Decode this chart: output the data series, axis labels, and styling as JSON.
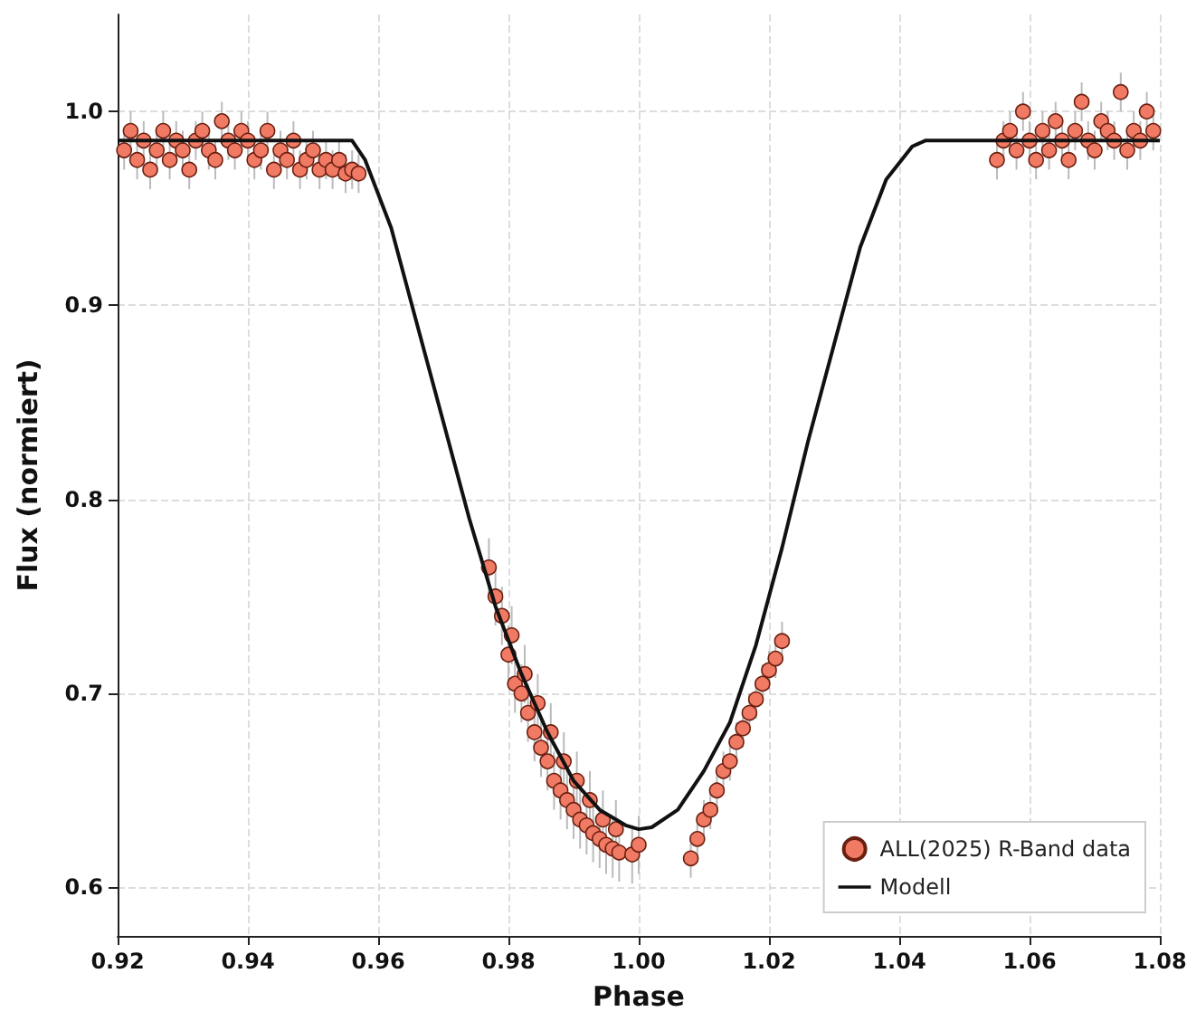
{
  "chart_data": {
    "type": "scatter",
    "xlabel": "Phase",
    "ylabel": "Flux (normiert)",
    "xlim": [
      0.92,
      1.08
    ],
    "xticks": [
      0.92,
      0.94,
      0.96,
      0.98,
      {
        "value": 1,
        "label": "1.00"
      },
      1.02,
      1.04,
      1.06,
      1.08
    ],
    "ylim": [
      0.575,
      1.05
    ],
    "yticks": [
      0.6,
      0.7,
      0.8,
      0.9,
      {
        "value": 1,
        "label": "1.0"
      }
    ],
    "grid": true,
    "legend": "bottom right",
    "series": [
      {
        "name": "ALL(2025) R-Band data",
        "type": "scatter",
        "marker": "circle",
        "color": "#f07a64",
        "x": [
          0.921,
          0.922,
          0.923,
          0.924,
          0.925,
          0.926,
          0.927,
          0.928,
          0.929,
          0.93,
          0.931,
          0.932,
          0.933,
          0.934,
          0.935,
          0.936,
          0.937,
          0.938,
          0.939,
          0.94,
          0.941,
          0.942,
          0.943,
          0.944,
          0.945,
          0.946,
          0.947,
          0.948,
          0.949,
          0.95,
          0.951,
          0.952,
          0.953,
          0.954,
          0.955,
          0.956,
          0.957,
          0.977,
          0.978,
          0.979,
          0.98,
          0.981,
          0.982,
          0.983,
          0.984,
          0.985,
          0.986,
          0.987,
          0.988,
          0.989,
          0.99,
          0.991,
          0.992,
          0.993,
          0.994,
          0.995,
          0.996,
          0.997,
          0.999,
          1.0,
          0.9805,
          0.9825,
          0.9845,
          0.9865,
          0.9885,
          0.9905,
          0.9925,
          0.9945,
          0.9965,
          1.008,
          1.009,
          1.01,
          1.011,
          1.012,
          1.013,
          1.014,
          1.015,
          1.016,
          1.017,
          1.018,
          1.019,
          1.02,
          1.021,
          1.022,
          1.055,
          1.056,
          1.057,
          1.058,
          1.059,
          1.06,
          1.061,
          1.062,
          1.063,
          1.064,
          1.065,
          1.066,
          1.067,
          1.068,
          1.069,
          1.07,
          1.071,
          1.072,
          1.073,
          1.074,
          1.075,
          1.076,
          1.077,
          1.078,
          1.079
        ],
        "values": [
          0.98,
          0.99,
          0.975,
          0.985,
          0.97,
          0.98,
          0.99,
          0.975,
          0.985,
          0.98,
          0.97,
          0.985,
          0.99,
          0.98,
          0.975,
          0.995,
          0.985,
          0.98,
          0.99,
          0.985,
          0.975,
          0.98,
          0.99,
          0.97,
          0.98,
          0.975,
          0.985,
          0.97,
          0.975,
          0.98,
          0.97,
          0.975,
          0.97,
          0.975,
          0.968,
          0.97,
          0.968,
          0.765,
          0.75,
          0.74,
          0.72,
          0.705,
          0.7,
          0.69,
          0.68,
          0.672,
          0.665,
          0.655,
          0.65,
          0.645,
          0.64,
          0.635,
          0.632,
          0.628,
          0.625,
          0.622,
          0.62,
          0.618,
          0.617,
          0.622,
          0.73,
          0.71,
          0.695,
          0.68,
          0.665,
          0.655,
          0.645,
          0.635,
          0.63,
          0.615,
          0.625,
          0.635,
          0.64,
          0.65,
          0.66,
          0.665,
          0.675,
          0.682,
          0.69,
          0.697,
          0.705,
          0.712,
          0.718,
          0.727,
          0.975,
          0.985,
          0.99,
          0.98,
          1.0,
          0.985,
          0.975,
          0.99,
          0.98,
          0.995,
          0.985,
          0.975,
          0.99,
          1.005,
          0.985,
          0.98,
          0.995,
          0.99,
          0.985,
          1.01,
          0.98,
          0.99,
          0.985,
          1.0,
          0.99
        ],
        "errors": [
          0.01,
          0.01,
          0.01,
          0.01,
          0.01,
          0.01,
          0.01,
          0.01,
          0.01,
          0.01,
          0.01,
          0.01,
          0.01,
          0.01,
          0.01,
          0.01,
          0.01,
          0.01,
          0.01,
          0.01,
          0.01,
          0.01,
          0.01,
          0.01,
          0.01,
          0.01,
          0.01,
          0.01,
          0.01,
          0.01,
          0.01,
          0.01,
          0.01,
          0.01,
          0.01,
          0.01,
          0.01,
          0.015,
          0.015,
          0.015,
          0.015,
          0.015,
          0.015,
          0.015,
          0.015,
          0.015,
          0.015,
          0.015,
          0.015,
          0.015,
          0.015,
          0.015,
          0.015,
          0.015,
          0.015,
          0.015,
          0.015,
          0.015,
          0.015,
          0.015,
          0.015,
          0.015,
          0.015,
          0.015,
          0.015,
          0.015,
          0.015,
          0.015,
          0.015,
          0.01,
          0.01,
          0.01,
          0.01,
          0.01,
          0.01,
          0.01,
          0.01,
          0.01,
          0.01,
          0.01,
          0.01,
          0.01,
          0.01,
          0.01,
          0.01,
          0.01,
          0.01,
          0.01,
          0.01,
          0.01,
          0.01,
          0.01,
          0.01,
          0.01,
          0.01,
          0.01,
          0.01,
          0.01,
          0.01,
          0.01,
          0.01,
          0.01,
          0.01,
          0.01,
          0.01,
          0.01,
          0.01,
          0.01,
          0.01
        ]
      },
      {
        "name": "Modell",
        "type": "line",
        "marker": "none",
        "line_style": "solid",
        "color": "#111111",
        "x": [
          0.92,
          0.956,
          0.958,
          0.962,
          0.966,
          0.97,
          0.974,
          0.978,
          0.982,
          0.986,
          0.99,
          0.994,
          0.998,
          1.0,
          1.002,
          1.006,
          1.01,
          1.014,
          1.018,
          1.022,
          1.026,
          1.03,
          1.034,
          1.038,
          1.042,
          1.044,
          1.08
        ],
        "values": [
          0.985,
          0.985,
          0.975,
          0.94,
          0.89,
          0.84,
          0.79,
          0.745,
          0.71,
          0.68,
          0.655,
          0.64,
          0.632,
          0.63,
          0.631,
          0.64,
          0.66,
          0.685,
          0.725,
          0.775,
          0.83,
          0.88,
          0.93,
          0.965,
          0.982,
          0.985,
          0.985
        ]
      }
    ]
  }
}
